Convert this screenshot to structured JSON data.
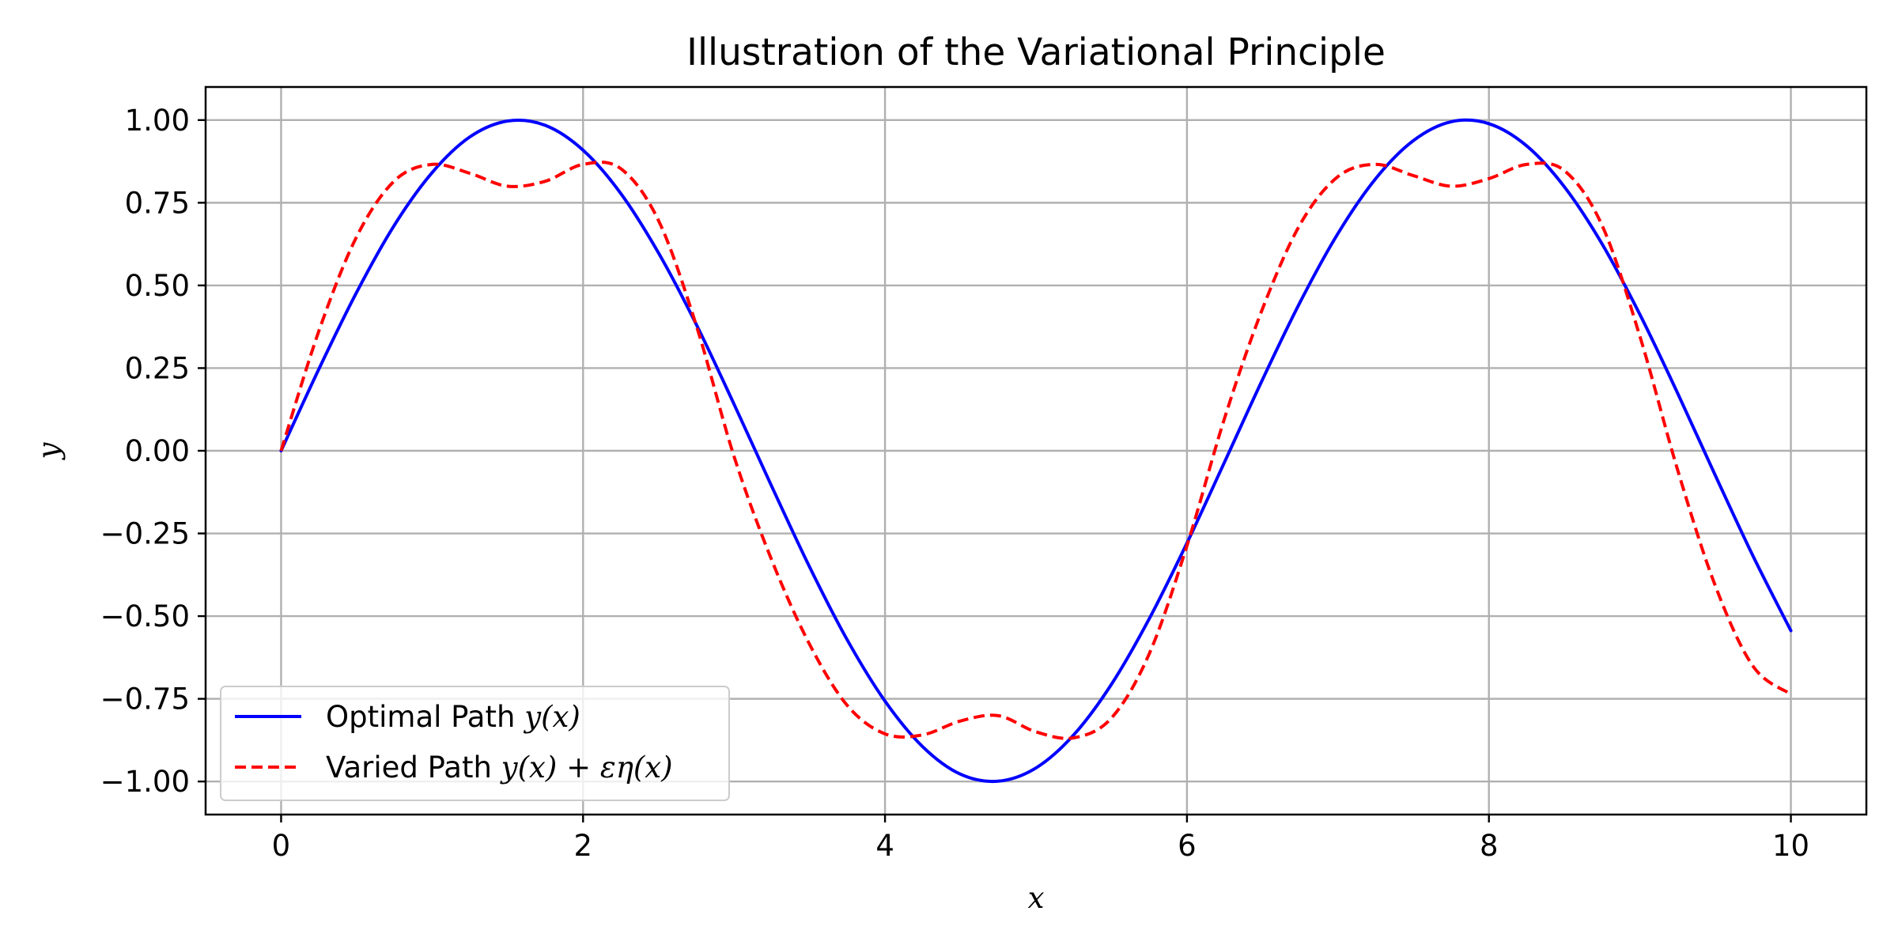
{
  "chart_data": {
    "type": "line",
    "title": "Illustration of the Variational Principle",
    "xlabel": "x",
    "ylabel": "y",
    "xlim": [
      -0.5,
      10.5
    ],
    "ylim": [
      -1.1,
      1.1
    ],
    "xticks": [
      0,
      2,
      4,
      6,
      8,
      10
    ],
    "xtick_labels": [
      "0",
      "2",
      "4",
      "6",
      "8",
      "10"
    ],
    "yticks": [
      1.0,
      0.75,
      0.5,
      0.25,
      0.0,
      -0.25,
      -0.5,
      -0.75,
      -1.0
    ],
    "ytick_labels": [
      "1.00",
      "0.75",
      "0.50",
      "0.25",
      "0.00",
      "−0.25",
      "−0.50",
      "−0.75",
      "−1.00"
    ],
    "grid": true,
    "legend_position": "lower-left",
    "x": [
      0,
      0.25,
      0.5,
      0.75,
      1.0,
      1.25,
      1.5,
      1.75,
      2.0,
      2.25,
      2.5,
      2.75,
      3.0,
      3.25,
      3.5,
      3.75,
      4.0,
      4.25,
      4.5,
      4.75,
      5.0,
      5.25,
      5.5,
      5.75,
      6.0,
      6.25,
      6.5,
      6.75,
      7.0,
      7.25,
      7.5,
      7.75,
      8.0,
      8.25,
      8.5,
      8.75,
      9.0,
      9.25,
      9.5,
      9.75,
      10.0
    ],
    "series": [
      {
        "name": "Optimal Path y(x)",
        "label_text": "Optimal Path ",
        "label_math": "y(x)",
        "color": "#0000ff",
        "line_style": "solid",
        "values": [
          0.0,
          0.247,
          0.479,
          0.682,
          0.841,
          0.949,
          0.997,
          0.984,
          0.909,
          0.778,
          0.598,
          0.382,
          0.141,
          -0.108,
          -0.351,
          -0.572,
          -0.757,
          -0.895,
          -0.978,
          -0.999,
          -0.959,
          -0.859,
          -0.706,
          -0.508,
          -0.279,
          -0.033,
          0.215,
          0.45,
          0.657,
          0.823,
          0.938,
          0.995,
          0.989,
          0.922,
          0.798,
          0.625,
          0.412,
          0.174,
          -0.075,
          -0.319,
          -0.544
        ]
      },
      {
        "name": "Varied Path y(x) + εη(x)",
        "label_text": "Varied Path ",
        "label_math": "y(x) + εη(x)",
        "color": "#ff0000",
        "line_style": "dashed",
        "values": [
          0.0,
          0.362,
          0.647,
          0.816,
          0.866,
          0.839,
          0.8,
          0.815,
          0.866,
          0.853,
          0.696,
          0.379,
          -0.017,
          -0.331,
          -0.585,
          -0.77,
          -0.856,
          -0.859,
          -0.817,
          -0.801,
          -0.85,
          -0.868,
          -0.808,
          -0.614,
          -0.287,
          0.1,
          0.429,
          0.685,
          0.829,
          0.866,
          0.832,
          0.8,
          0.823,
          0.866,
          0.847,
          0.681,
          0.346,
          -0.058,
          -0.409,
          -0.652,
          -0.736
        ]
      }
    ]
  }
}
